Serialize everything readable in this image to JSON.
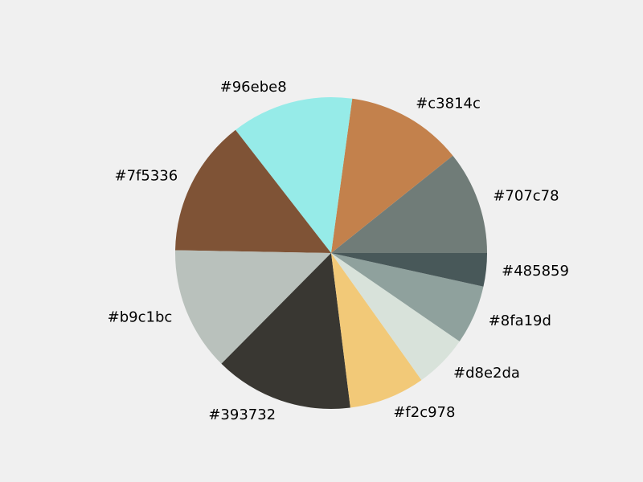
{
  "chart_data": {
    "type": "pie",
    "start_angle_deg": 0,
    "direction": "counterclockwise",
    "slices": [
      {
        "label": "#707c78",
        "color": "#707c78",
        "value": 0.56
      },
      {
        "label": "#c3814c",
        "color": "#c3814c",
        "value": 0.63
      },
      {
        "label": "#96ebe8",
        "color": "#96ebe8",
        "value": 0.66
      },
      {
        "label": "#7f5336",
        "color": "#7f5336",
        "value": 0.74
      },
      {
        "label": "#b9c1bc",
        "color": "#b9c1bc",
        "value": 0.67
      },
      {
        "label": "#393732",
        "color": "#393732",
        "value": 0.75
      },
      {
        "label": "#f2c978",
        "color": "#f2c978",
        "value": 0.41
      },
      {
        "label": "#d8e2da",
        "color": "#d8e2da",
        "value": 0.29
      },
      {
        "label": "#8fa19d",
        "color": "#8fa19d",
        "value": 0.32
      },
      {
        "label": "#485859",
        "color": "#485859",
        "value": 0.18
      }
    ]
  }
}
